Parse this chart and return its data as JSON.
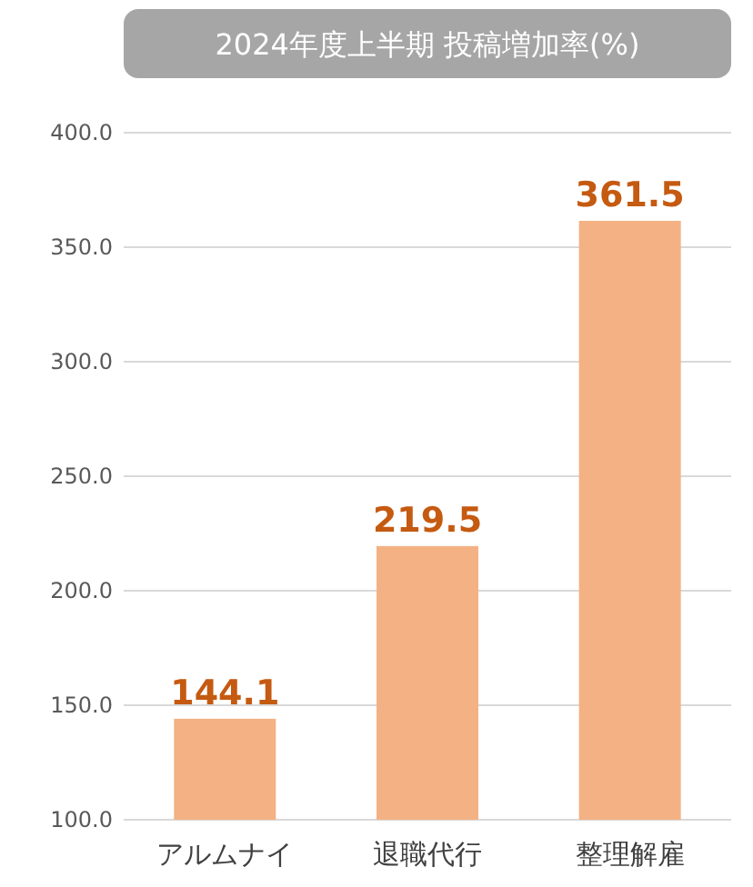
{
  "chart_data": {
    "type": "bar",
    "title": "2024年度上半期 投稿増加率(%)",
    "categories": [
      "アルムナイ",
      "退職代行",
      "整理解雇"
    ],
    "values": [
      144.1,
      219.5,
      361.5
    ],
    "color": "#f4b183",
    "ylim": [
      100,
      400
    ],
    "yticks": [
      {
        "value": 100,
        "label": "100.0"
      },
      {
        "value": 150,
        "label": "150.0"
      },
      {
        "value": 200,
        "label": "200.0"
      },
      {
        "value": 250,
        "label": "250.0"
      },
      {
        "value": 300,
        "label": "300.0"
      },
      {
        "value": 350,
        "label": "350.0"
      },
      {
        "value": 400,
        "label": "400.0"
      }
    ],
    "grid": "y",
    "data_labels": true
  }
}
